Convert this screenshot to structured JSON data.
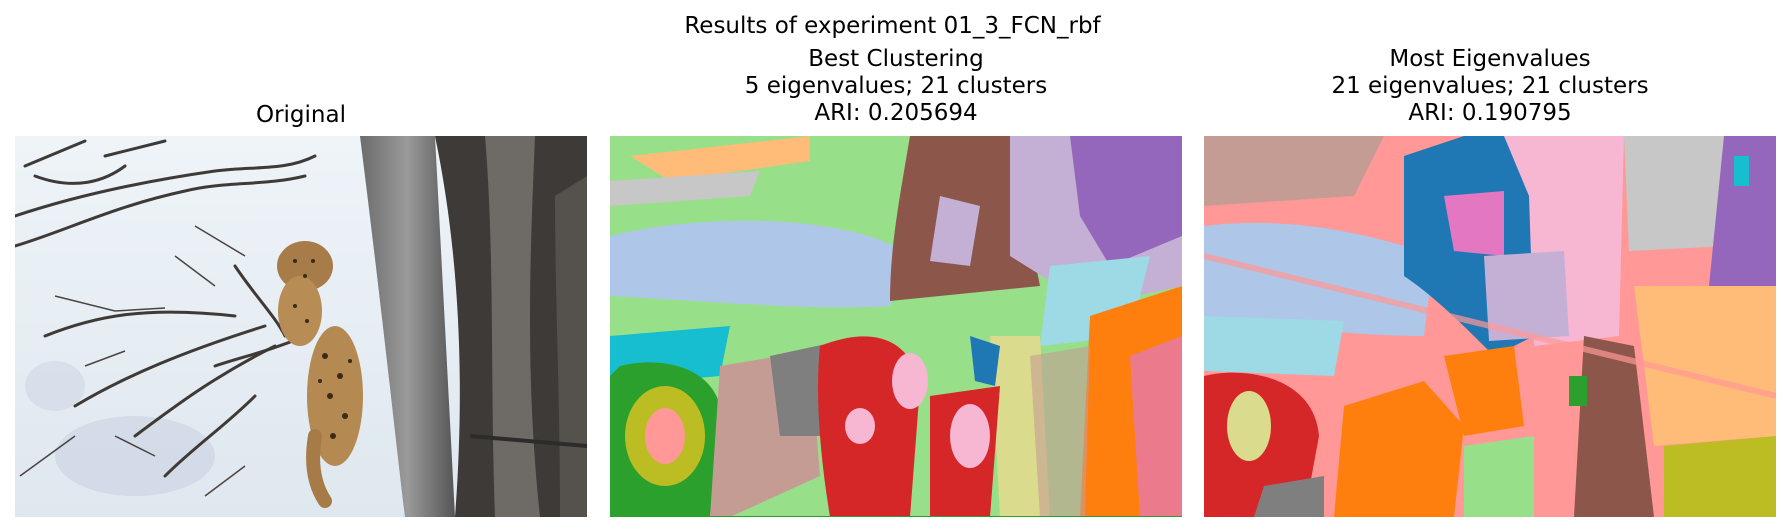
{
  "figure": {
    "suptitle": "Results of experiment 01_3_FCN_rbf"
  },
  "panels": [
    {
      "title_lines": [
        "Original"
      ],
      "image": "leopard-on-tree-photo"
    },
    {
      "title_lines": [
        "Best Clustering",
        "5 eigenvalues; 21 clusters",
        "ARI: 0.205694"
      ],
      "image": "segmentation-map"
    },
    {
      "title_lines": [
        "Most Eigenvalues",
        "21 eigenvalues; 21 clusters",
        "ARI: 0.190795"
      ],
      "image": "segmentation-map"
    }
  ],
  "colors": {
    "background": "#ffffff",
    "palette": [
      "#1f77b4",
      "#aec7e8",
      "#ff7f0e",
      "#ffbb78",
      "#2ca02c",
      "#98df8a",
      "#d62728",
      "#ff9896",
      "#9467bd",
      "#c5b0d5",
      "#8c564b",
      "#c49c94",
      "#e377c2",
      "#f7b6d2",
      "#7f7f7f",
      "#c7c7c7",
      "#bcbd22",
      "#dbdb8d",
      "#17becf",
      "#9edae5"
    ]
  }
}
